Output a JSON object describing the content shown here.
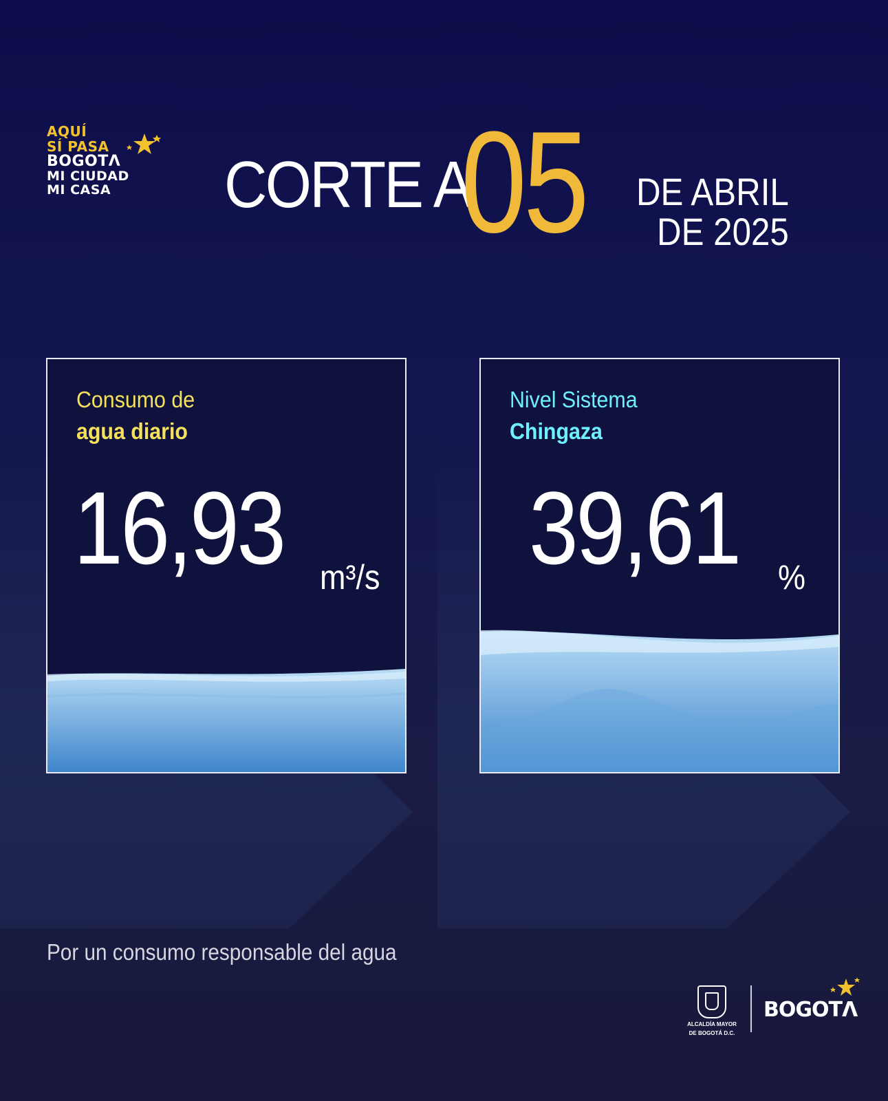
{
  "logo": {
    "line1": "AQUÍ",
    "line2": "SÍ PASA",
    "line3": "BOGOTΛ",
    "line4": "MI CIUDAD",
    "line5": "MI CASA"
  },
  "header": {
    "corte": "CORTE A",
    "day": "05",
    "month_line": "DE ABRIL",
    "year_line": "DE 2025"
  },
  "cards": [
    {
      "label_line1": "Consumo de",
      "label_line2": "agua diario",
      "value": "16,93",
      "unit": "m³/s",
      "label_color": "#f5e15c"
    },
    {
      "label_line1": "Nivel Sistema",
      "label_line2": "Chingaza",
      "value": "39,61",
      "unit": "%",
      "label_color": "#6ff0ff"
    }
  ],
  "footer": {
    "tagline": "Por un consumo responsable del agua",
    "crest_caption_1": "ALCALDÍA MAYOR",
    "crest_caption_2": "DE BOGOTÁ D.C.",
    "brand": "BOGOTΛ"
  },
  "colors": {
    "accent_gold": "#f0b93a",
    "water_light": "#a8d0f0",
    "water_dark": "#3f86cc"
  }
}
